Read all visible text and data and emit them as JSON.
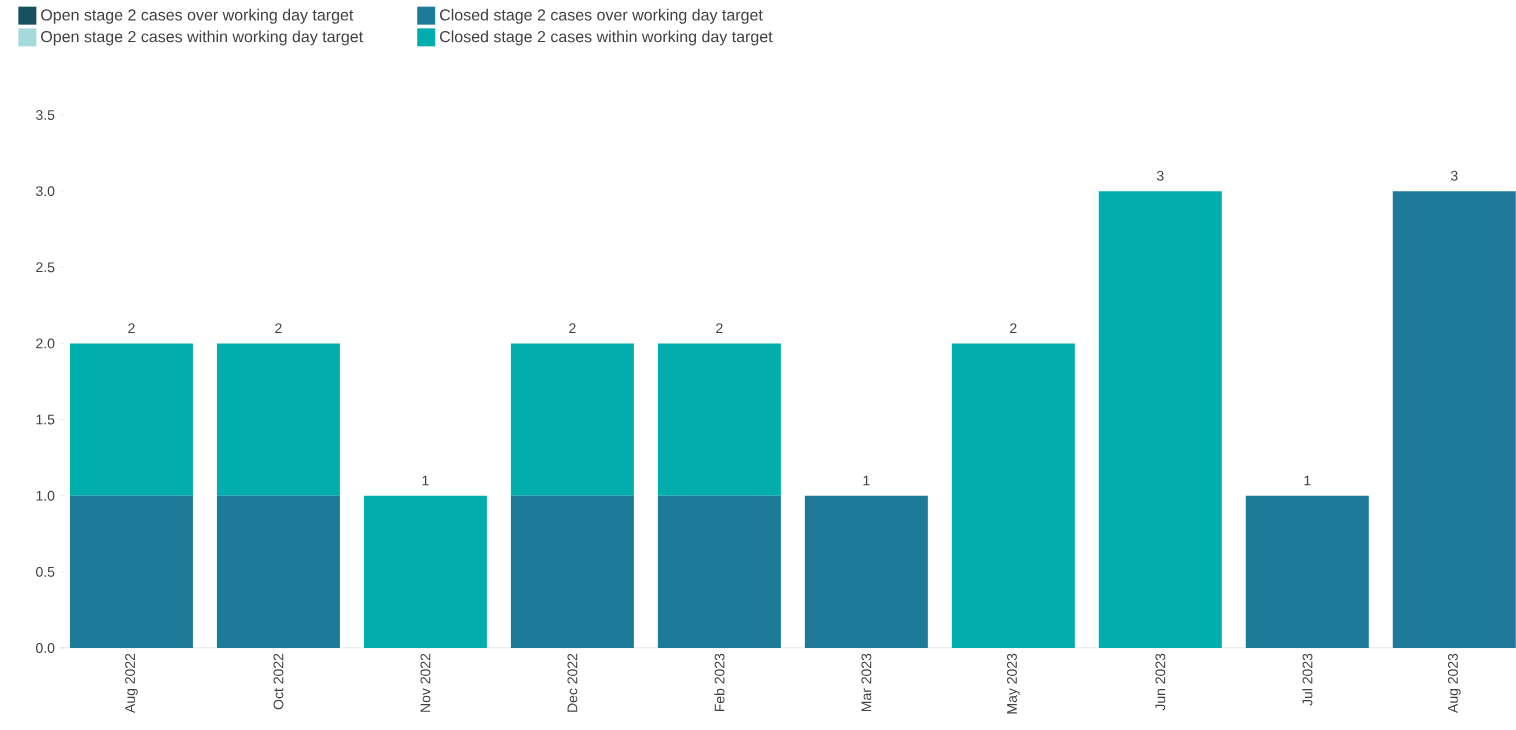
{
  "chart_data": {
    "type": "bar",
    "stacked": true,
    "legend": "top left",
    "categories": [
      "Aug 2022",
      "Oct 2022",
      "Nov 2022",
      "Dec 2022",
      "Feb 2023",
      "Mar 2023",
      "May 2023",
      "Jun 2023",
      "Jul 2023",
      "Aug 2023"
    ],
    "series": [
      {
        "name": "Open stage 2 cases over working day target",
        "color": "#17505f",
        "values": [
          null,
          null,
          null,
          null,
          null,
          null,
          null,
          null,
          null,
          null
        ]
      },
      {
        "name": "Open stage 2 cases within working day target",
        "color": "#a6d9da",
        "values": [
          null,
          null,
          null,
          null,
          null,
          null,
          null,
          null,
          null,
          null
        ]
      },
      {
        "name": "Closed stage 2 cases over working day target",
        "color": "#1d7a99",
        "values": [
          1,
          1,
          0,
          1,
          1,
          1,
          0,
          0,
          1,
          3
        ]
      },
      {
        "name": "Closed stage 2 cases within working day target",
        "color": "#02adad",
        "values": [
          1,
          1,
          1,
          1,
          1,
          0,
          2,
          3,
          0,
          0
        ]
      }
    ],
    "totals": [
      "2",
      "2",
      "1",
      "2",
      "2",
      "1",
      "2",
      "3",
      "1",
      "3"
    ],
    "ylim": [
      0,
      3.5
    ],
    "yticks": [
      {
        "value": 0,
        "label": "0.0"
      },
      {
        "value": 0.5,
        "label": "0.5"
      },
      {
        "value": 1,
        "label": "1.0"
      },
      {
        "value": 1.5,
        "label": "1.5"
      },
      {
        "value": 2,
        "label": "2.0"
      },
      {
        "value": 2.5,
        "label": "2.5"
      },
      {
        "value": 3,
        "label": "3.0"
      },
      {
        "value": 3.5,
        "label": "3.5"
      }
    ],
    "grid": false
  }
}
